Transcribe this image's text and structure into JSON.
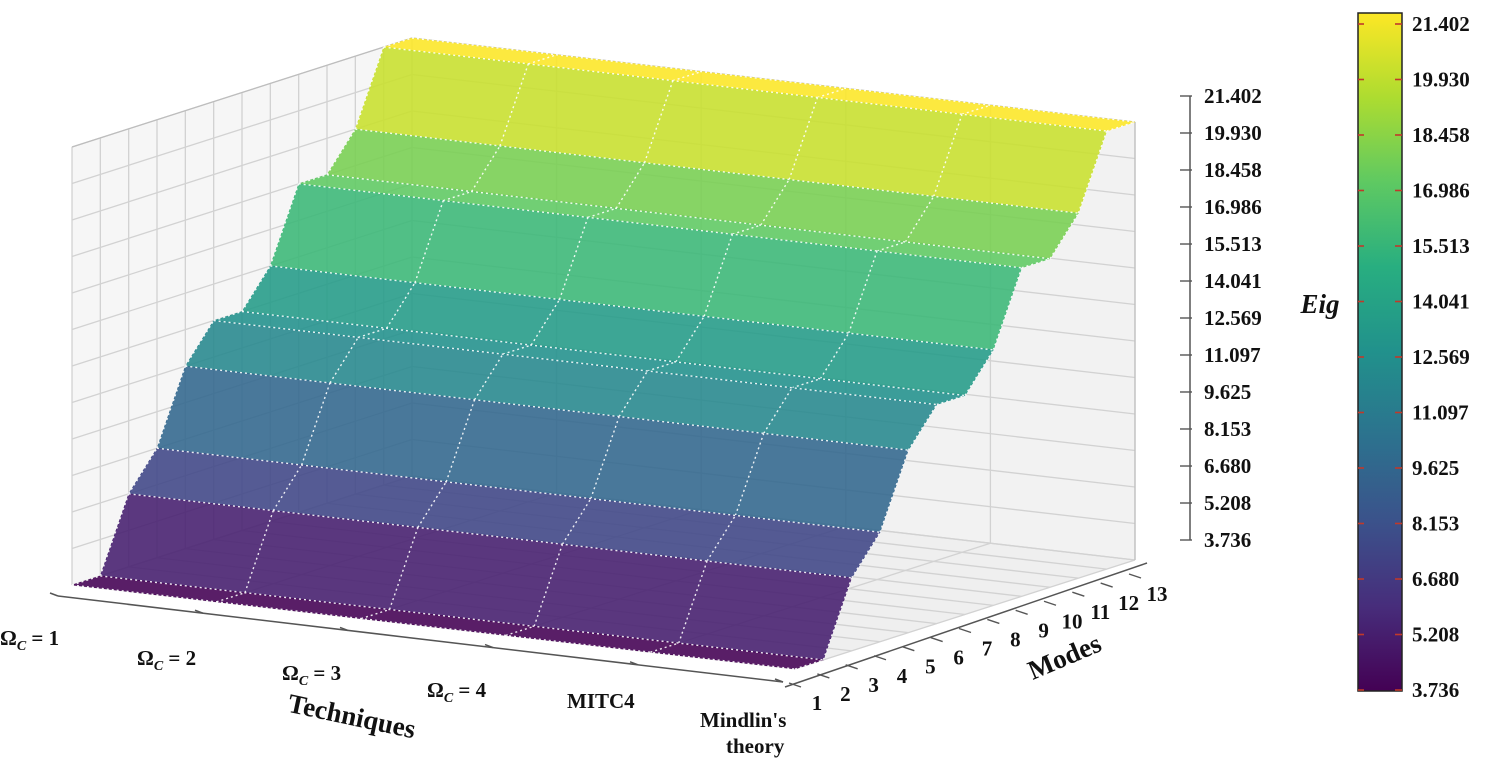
{
  "chart_data": {
    "type": "surface3d",
    "xlabel": "Techniques",
    "ylabel": "Modes",
    "zlabel": "Eig",
    "x_categories": [
      "Ω_C = 1",
      "Ω_C = 2",
      "Ω_C = 3",
      "Ω_C = 4",
      "MITC4",
      "Mindlin's theory"
    ],
    "x_tick_labels": [
      {
        "main": "Ω",
        "sub": "C",
        "rest": " = 1"
      },
      {
        "main": "Ω",
        "sub": "C",
        "rest": " = 2"
      },
      {
        "main": "Ω",
        "sub": "C",
        "rest": " = 3"
      },
      {
        "main": "Ω",
        "sub": "C",
        "rest": " = 4"
      },
      {
        "main": "MITC4",
        "sub": "",
        "rest": ""
      },
      {
        "main": "Mindlin's",
        "sub": "",
        "rest": "theory"
      }
    ],
    "modes": [
      1,
      2,
      3,
      4,
      5,
      6,
      7,
      8,
      9,
      10,
      11,
      12,
      13
    ],
    "mode_values": [
      3.736,
      3.736,
      6.68,
      8.153,
      11.097,
      12.569,
      12.569,
      14.041,
      16.986,
      16.986,
      18.458,
      21.402,
      21.402
    ],
    "z_ticks": [
      "3.736",
      "5.208",
      "6.680",
      "8.153",
      "9.625",
      "11.097",
      "12.569",
      "14.041",
      "15.513",
      "16.986",
      "18.458",
      "19.930",
      "21.402"
    ],
    "zlim": [
      3.736,
      21.402
    ],
    "colorbar": {
      "colormap": "viridis",
      "ticks": [
        "3.736",
        "5.208",
        "6.680",
        "8.153",
        "9.625",
        "11.097",
        "12.569",
        "14.041",
        "15.513",
        "16.986",
        "18.458",
        "19.930",
        "21.402"
      ]
    },
    "grid": true
  }
}
